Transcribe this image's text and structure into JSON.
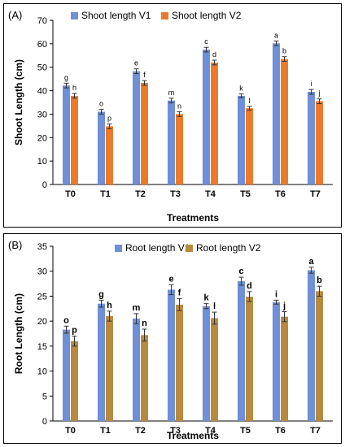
{
  "chart_data": [
    {
      "type": "bar",
      "panel_label": "(A)",
      "xlabel": "Treatments",
      "ylabel": "Shoot  Length (cm)",
      "ylim": [
        0,
        70
      ],
      "yticks": [
        0,
        10,
        20,
        30,
        40,
        50,
        60,
        70
      ],
      "categories": [
        "T0",
        "T1",
        "T2",
        "T3",
        "T4",
        "T5",
        "T6",
        "T7"
      ],
      "legend_position": "top-left",
      "series": [
        {
          "name": "Shoot length V1",
          "color": "#6f8fd6",
          "values": [
            42.2,
            31.0,
            48.3,
            35.8,
            57.5,
            37.8,
            60.2,
            39.5
          ],
          "errors": [
            1.0,
            1.0,
            1.0,
            1.0,
            1.0,
            0.8,
            1.0,
            1.0
          ],
          "labels": [
            "g",
            "o",
            "e",
            "m",
            "c",
            "k",
            "a",
            "i"
          ]
        },
        {
          "name": "Shoot length V2",
          "color": "#ec7a2b",
          "values": [
            37.8,
            24.8,
            43.3,
            30.0,
            52.0,
            32.5,
            53.5,
            35.5
          ],
          "errors": [
            1.0,
            1.0,
            1.0,
            1.0,
            1.0,
            0.8,
            1.0,
            1.0
          ],
          "labels": [
            "h",
            "p",
            "f",
            "n",
            "d",
            "l",
            "b",
            "j"
          ]
        }
      ]
    },
    {
      "type": "bar",
      "panel_label": "(B)",
      "xlabel": "Treatments",
      "ylabel": "Root Length (cm)",
      "ylim": [
        0,
        35
      ],
      "yticks": [
        0,
        5,
        10,
        15,
        20,
        25,
        30,
        35
      ],
      "categories": [
        "T0",
        "T1",
        "T2",
        "T3",
        "T4",
        "T5",
        "T6",
        "T7"
      ],
      "legend_position": "top-left",
      "series": [
        {
          "name": "Root length V1",
          "color": "#6f8fd6",
          "values": [
            18.3,
            23.5,
            20.5,
            26.3,
            23.0,
            28.0,
            23.8,
            30.2
          ],
          "errors": [
            0.7,
            0.7,
            1.0,
            1.0,
            0.5,
            0.8,
            0.4,
            0.6
          ],
          "labels": [
            "o",
            "g",
            "m",
            "e",
            "k",
            "c",
            "i",
            "a"
          ]
        },
        {
          "name": "Root length V2",
          "color": "#b78a3f",
          "values": [
            16.0,
            21.0,
            17.2,
            23.3,
            20.6,
            24.9,
            20.9,
            26.0
          ],
          "errors": [
            1.0,
            1.0,
            1.2,
            1.2,
            1.2,
            1.0,
            1.0,
            1.0
          ],
          "labels": [
            "p",
            "h",
            "n",
            "f",
            "l",
            "d",
            "j",
            "b"
          ]
        }
      ]
    }
  ]
}
